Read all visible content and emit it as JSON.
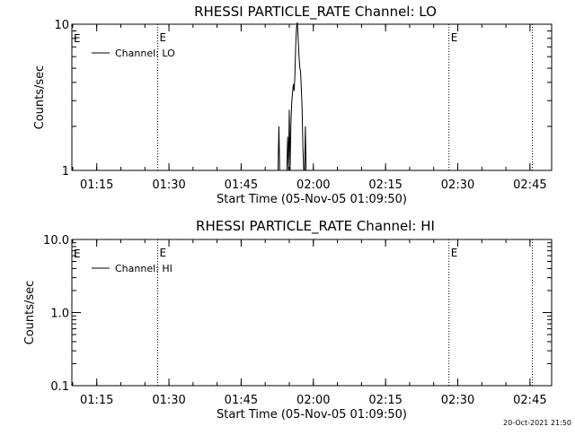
{
  "chart_data": [
    {
      "type": "line",
      "title": "RHESSI PARTICLE_RATE Channel: LO",
      "xlabel": "Start Time (05-Nov-05 01:09:50)",
      "ylabel": "Counts/sec",
      "y_scale": "log",
      "ylim": [
        1,
        10
      ],
      "y_ticks": [
        "1",
        "10"
      ],
      "xlim": [
        "01:09:50",
        "02:49:30"
      ],
      "x_ticks": [
        "01:15",
        "01:30",
        "01:45",
        "02:00",
        "02:15",
        "02:30",
        "02:45"
      ],
      "grid": false,
      "legend_position": "top-left",
      "series": [
        {
          "name": "Channel: LO",
          "x": [
            "01:52:40",
            "01:52:50",
            "01:53:00",
            "01:53:10",
            "01:53:20",
            "01:53:30",
            "01:53:40",
            "01:53:50",
            "01:54:00",
            "01:54:10",
            "01:54:20",
            "01:54:30",
            "01:54:40",
            "01:54:50",
            "01:55:00",
            "01:55:10",
            "01:55:20",
            "01:55:30",
            "01:55:40",
            "01:55:50",
            "01:56:00",
            "01:56:10",
            "01:56:20",
            "01:56:30",
            "01:56:40",
            "01:56:50",
            "01:57:00",
            "01:57:10",
            "01:57:20",
            "01:57:30",
            "01:57:40",
            "01:57:50",
            "01:58:00",
            "01:58:10",
            "01:58:20",
            "01:58:30",
            "01:58:40",
            "01:58:50",
            "01:59:00",
            "01:59:10"
          ],
          "values": [
            1,
            2,
            1,
            1,
            1,
            1,
            1,
            1,
            1,
            1,
            1,
            1,
            1.7,
            1,
            2.6,
            1,
            2.1,
            2.9,
            3.4,
            3.9,
            3.5,
            4.4,
            7.1,
            9.4,
            10.3,
            8.2,
            6.2,
            5.1,
            4.8,
            3.6,
            2.6,
            1.4,
            1,
            1,
            2,
            1,
            1,
            1,
            1,
            1
          ]
        }
      ],
      "event_markers": [
        {
          "x": "01:27:40",
          "label": "E"
        },
        {
          "x": "02:28:10",
          "label": "E"
        },
        {
          "x": "02:45:30",
          "label": ""
        }
      ],
      "start_marker_label": "E"
    },
    {
      "type": "line",
      "title": "RHESSI PARTICLE_RATE Channel: HI",
      "xlabel": "Start Time (05-Nov-05 01:09:50)",
      "ylabel": "Counts/sec",
      "y_scale": "log",
      "ylim": [
        0.1,
        10
      ],
      "y_ticks": [
        "0.1",
        "1.0",
        "10.0"
      ],
      "xlim": [
        "01:09:50",
        "02:49:30"
      ],
      "x_ticks": [
        "01:15",
        "01:30",
        "01:45",
        "02:00",
        "02:15",
        "02:30",
        "02:45"
      ],
      "grid": false,
      "legend_position": "top-left",
      "series": [
        {
          "name": "Channel: HI",
          "x": [],
          "values": []
        }
      ],
      "event_markers": [
        {
          "x": "01:27:40",
          "label": "E"
        },
        {
          "x": "02:28:10",
          "label": "E"
        },
        {
          "x": "02:45:30",
          "label": ""
        }
      ],
      "start_marker_label": "E"
    }
  ],
  "footer": {
    "timestamp": "20-Oct-2021 21:50"
  }
}
